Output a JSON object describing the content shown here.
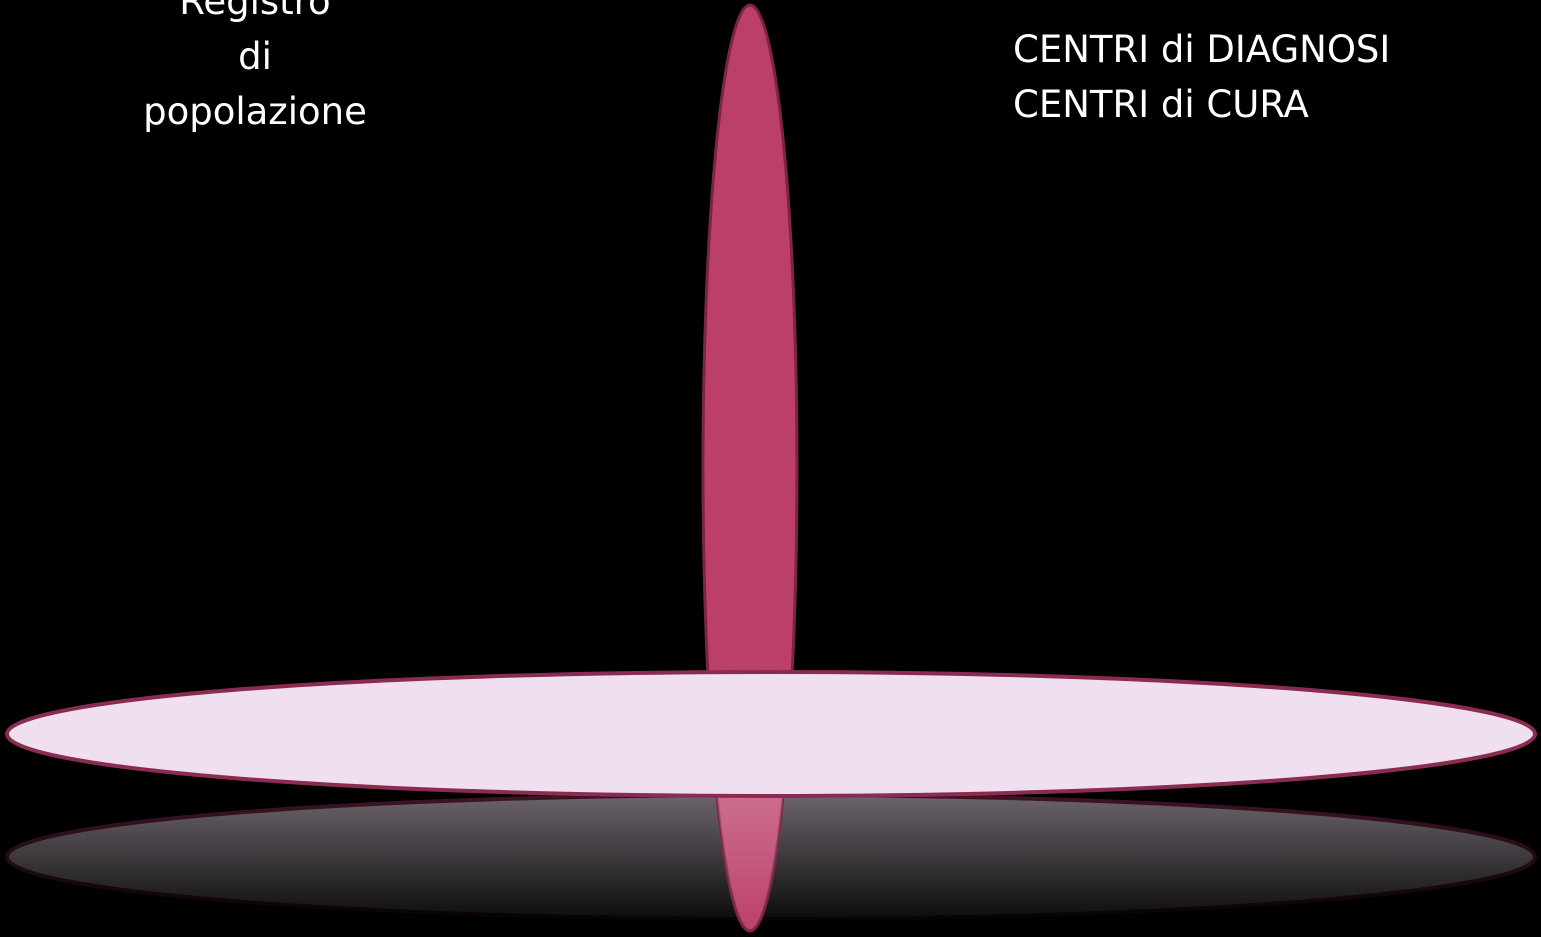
{
  "slide": {
    "left_text": [
      "Registro",
      "di",
      "popolazione"
    ],
    "right_text": [
      "CENTRI di DIAGNOSI",
      "CENTRI di CURA"
    ]
  },
  "colors": {
    "background": "#000000",
    "vertical_ellipse_fill": "#BC3F6A",
    "vertical_ellipse_stroke": "#7A2446",
    "horizontal_ellipse_fill": "#EFDFEF",
    "horizontal_ellipse_stroke": "#8A2C52",
    "text": "#FFFFFF"
  }
}
